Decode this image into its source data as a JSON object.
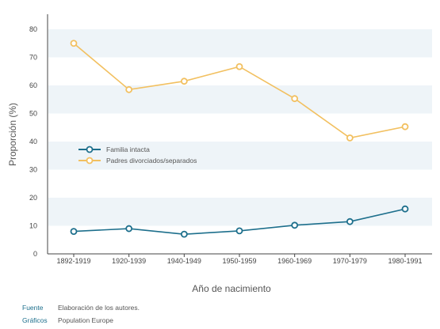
{
  "chart_data": {
    "type": "line",
    "categories": [
      "1892-1919",
      "1920-1939",
      "1940-1949",
      "1950-1959",
      "1960-1969",
      "1970-1979",
      "1980-1991"
    ],
    "series": [
      {
        "name": "Familia intacta",
        "color": "#1d6f8c",
        "values": [
          8,
          9,
          7,
          8.2,
          10.2,
          11.5,
          16
        ]
      },
      {
        "name": "Padres divorciados/separados",
        "color": "#f2c060",
        "values": [
          75,
          58.5,
          61.5,
          66.7,
          55.3,
          41.3,
          45.3
        ]
      }
    ],
    "xlabel": "Año de nacimiento",
    "ylabel": "Proporción (%)",
    "ylim": [
      0,
      85
    ],
    "yticks": [
      0,
      10,
      20,
      30,
      40,
      50,
      60,
      70,
      80
    ],
    "grid": "alternating horizontal bands",
    "legend_position": "middle-left"
  },
  "footer": {
    "source_label": "Fuente",
    "source_value": "Elaboración de los autores.",
    "graphics_label": "Gráficos",
    "graphics_value": "Population Europe"
  }
}
